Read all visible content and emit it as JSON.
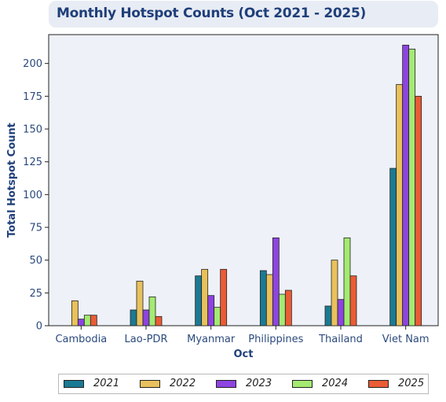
{
  "chart_data": {
    "type": "bar",
    "title": "Monthly Hotspot Counts (Oct 2021 - 2025)",
    "xlabel": "Oct",
    "ylabel": "Total Hotspot Count",
    "ylim": [
      0,
      222
    ],
    "yticks": [
      0,
      25,
      50,
      75,
      100,
      125,
      150,
      175,
      200
    ],
    "categories": [
      "Cambodia",
      "Lao-PDR",
      "Myanmar",
      "Philippines",
      "Thailand",
      "Viet Nam"
    ],
    "series": [
      {
        "name": "2021",
        "color": "#1b7a93",
        "values": [
          0,
          12,
          38,
          42,
          15,
          120
        ]
      },
      {
        "name": "2022",
        "color": "#e9c15c",
        "values": [
          19,
          34,
          43,
          39,
          50,
          184
        ]
      },
      {
        "name": "2023",
        "color": "#8e44e0",
        "values": [
          5,
          12,
          23,
          67,
          20,
          214
        ]
      },
      {
        "name": "2024",
        "color": "#a4ea72",
        "values": [
          8,
          22,
          14,
          24,
          67,
          211
        ]
      },
      {
        "name": "2025",
        "color": "#ea5b36",
        "values": [
          8,
          7,
          43,
          27,
          38,
          175
        ]
      }
    ],
    "grid": false,
    "legend_position": "bottom"
  }
}
